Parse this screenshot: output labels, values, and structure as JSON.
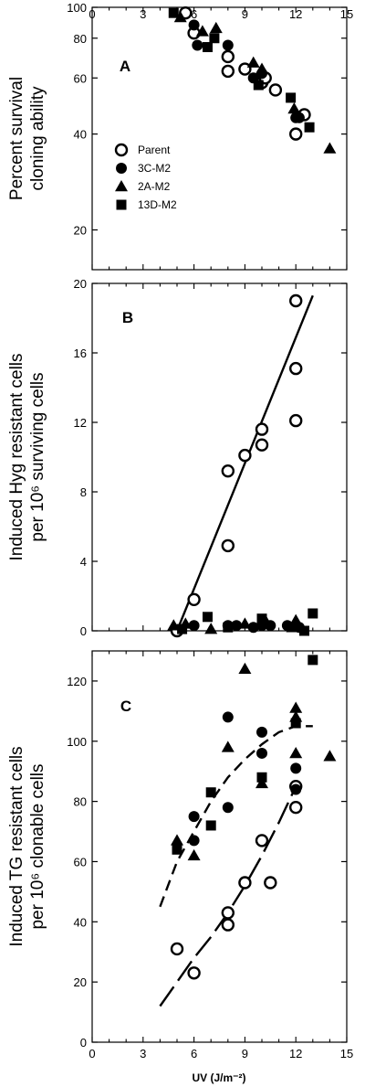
{
  "x_axis": {
    "label": "UV (J/m⁻²)",
    "range": [
      0,
      15
    ],
    "ticks": [
      0,
      3,
      6,
      9,
      12,
      15
    ]
  },
  "chart_data": [
    {
      "type": "scatter",
      "panel_label": "A",
      "ylabel": [
        "Percent survival",
        "cloning ability"
      ],
      "xlim": [
        0,
        15
      ],
      "ylim": [
        15,
        100
      ],
      "y_scale": "log",
      "y_ticks": [
        20,
        40,
        60,
        80,
        100
      ],
      "legend": {
        "placement": "left",
        "entries": [
          "Parent",
          "3C-M2",
          "2A-M2",
          "13D-M2"
        ]
      },
      "series": [
        {
          "name": "Parent",
          "marker": "open-circle",
          "points": [
            [
              5.5,
              96
            ],
            [
              6.0,
              83
            ],
            [
              8.0,
              70
            ],
            [
              8.0,
              63
            ],
            [
              9.0,
              64
            ],
            [
              10.0,
              58
            ],
            [
              10.2,
              60
            ],
            [
              10.8,
              55
            ],
            [
              12.0,
              40
            ],
            [
              12.5,
              46
            ]
          ]
        },
        {
          "name": "3C-M2",
          "marker": "filled-circle",
          "points": [
            [
              6.0,
              88
            ],
            [
              6.2,
              76
            ],
            [
              8.0,
              76
            ],
            [
              9.5,
              60
            ],
            [
              10.0,
              62
            ],
            [
              12.0,
              45
            ],
            [
              12.2,
              45
            ]
          ]
        },
        {
          "name": "2A-M2",
          "marker": "filled-triangle",
          "points": [
            [
              5.2,
              93
            ],
            [
              6.5,
              84
            ],
            [
              7.3,
              86
            ],
            [
              9.5,
              67
            ],
            [
              10.0,
              64
            ],
            [
              11.9,
              48
            ],
            [
              14.0,
              36
            ]
          ]
        },
        {
          "name": "13D-M2",
          "marker": "filled-square",
          "points": [
            [
              4.8,
              96
            ],
            [
              6.8,
              75
            ],
            [
              7.2,
              80
            ],
            [
              9.8,
              57
            ],
            [
              11.7,
              52
            ],
            [
              12.8,
              42
            ]
          ]
        }
      ]
    },
    {
      "type": "scatter",
      "panel_label": "B",
      "ylabel": [
        "Induced Hyg resistant cells",
        "per 10⁶ surviving cells"
      ],
      "xlim": [
        0,
        15
      ],
      "ylim": [
        0,
        20
      ],
      "y_ticks": [
        0,
        4,
        8,
        12,
        16,
        20
      ],
      "series": [
        {
          "name": "Parent",
          "marker": "open-circle",
          "points": [
            [
              5.0,
              0.0
            ],
            [
              6.0,
              1.8
            ],
            [
              8.0,
              9.2
            ],
            [
              8.0,
              4.9
            ],
            [
              9.0,
              10.1
            ],
            [
              10.0,
              11.6
            ],
            [
              10.0,
              10.7
            ],
            [
              12.0,
              19.0
            ],
            [
              12.0,
              15.1
            ],
            [
              12.0,
              12.1
            ]
          ]
        },
        {
          "name": "3C-M2",
          "marker": "filled-circle",
          "points": [
            [
              6.0,
              0.3
            ],
            [
              8.0,
              0.3
            ],
            [
              8.5,
              0.3
            ],
            [
              9.5,
              0.2
            ],
            [
              10.0,
              0.3
            ],
            [
              10.5,
              0.3
            ],
            [
              11.5,
              0.3
            ],
            [
              12.2,
              0.2
            ]
          ]
        },
        {
          "name": "2A-M2",
          "marker": "filled-triangle",
          "points": [
            [
              4.8,
              0.3
            ],
            [
              5.5,
              0.4
            ],
            [
              7.0,
              0.1
            ],
            [
              9.0,
              0.4
            ],
            [
              10.2,
              0.6
            ],
            [
              11.8,
              0.2
            ],
            [
              12.0,
              0.6
            ]
          ]
        },
        {
          "name": "13D-M2",
          "marker": "filled-square",
          "points": [
            [
              5.3,
              0.1
            ],
            [
              6.8,
              0.8
            ],
            [
              8.0,
              0.2
            ],
            [
              10.0,
              0.7
            ],
            [
              12.5,
              0.0
            ],
            [
              13.0,
              1.0
            ]
          ]
        }
      ],
      "fit_lines": [
        {
          "style": "solid",
          "points": [
            [
              5.0,
              0.0
            ],
            [
              13.0,
              19.3
            ]
          ]
        }
      ]
    },
    {
      "type": "scatter",
      "panel_label": "C",
      "ylabel": [
        "Induced TG resistant cells",
        "per 10⁶ clonable cells"
      ],
      "xlim": [
        0,
        15
      ],
      "ylim": [
        0,
        130
      ],
      "y_ticks": [
        0,
        20,
        40,
        60,
        80,
        100,
        120
      ],
      "series": [
        {
          "name": "Parent",
          "marker": "open-circle",
          "points": [
            [
              5.0,
              31
            ],
            [
              6.0,
              23
            ],
            [
              8.0,
              43
            ],
            [
              8.0,
              39
            ],
            [
              9.0,
              53
            ],
            [
              10.0,
              67
            ],
            [
              10.5,
              53
            ],
            [
              12.0,
              85
            ],
            [
              12.0,
              78
            ]
          ]
        },
        {
          "name": "3C-M2",
          "marker": "filled-circle",
          "points": [
            [
              6.0,
              75
            ],
            [
              6.0,
              67
            ],
            [
              8.0,
              108
            ],
            [
              8.0,
              78
            ],
            [
              10.0,
              103
            ],
            [
              10.0,
              96
            ],
            [
              12.0,
              91
            ],
            [
              12.0,
              84
            ]
          ]
        },
        {
          "name": "2A-M2",
          "marker": "filled-triangle",
          "points": [
            [
              5.0,
              67
            ],
            [
              6.0,
              62
            ],
            [
              8.0,
              98
            ],
            [
              9.0,
              124
            ],
            [
              10.0,
              86
            ],
            [
              12.0,
              111
            ],
            [
              12.0,
              108
            ],
            [
              12.0,
              96
            ],
            [
              14.0,
              95
            ]
          ]
        },
        {
          "name": "13D-M2",
          "marker": "filled-square",
          "points": [
            [
              5.0,
              64
            ],
            [
              7.0,
              83
            ],
            [
              7.0,
              72
            ],
            [
              10.0,
              88
            ],
            [
              12.0,
              106
            ],
            [
              13.0,
              127
            ]
          ]
        }
      ],
      "fit_lines": [
        {
          "style": "dashed",
          "points": [
            [
              4.0,
              45
            ],
            [
              5.0,
              60
            ],
            [
              6.0,
              70
            ],
            [
              7.0,
              80
            ],
            [
              8.0,
              88
            ],
            [
              9.0,
              94
            ],
            [
              10.0,
              99
            ],
            [
              11.0,
              103
            ],
            [
              12.0,
              105
            ],
            [
              13.0,
              105
            ]
          ]
        },
        {
          "style": "long-dash",
          "points": [
            [
              4.0,
              12
            ],
            [
              5.0,
              20
            ],
            [
              6.0,
              28
            ],
            [
              7.0,
              35
            ],
            [
              8.0,
              43
            ],
            [
              9.0,
              52
            ],
            [
              10.0,
              62
            ],
            [
              11.0,
              73
            ],
            [
              12.0,
              85
            ]
          ]
        }
      ]
    }
  ]
}
